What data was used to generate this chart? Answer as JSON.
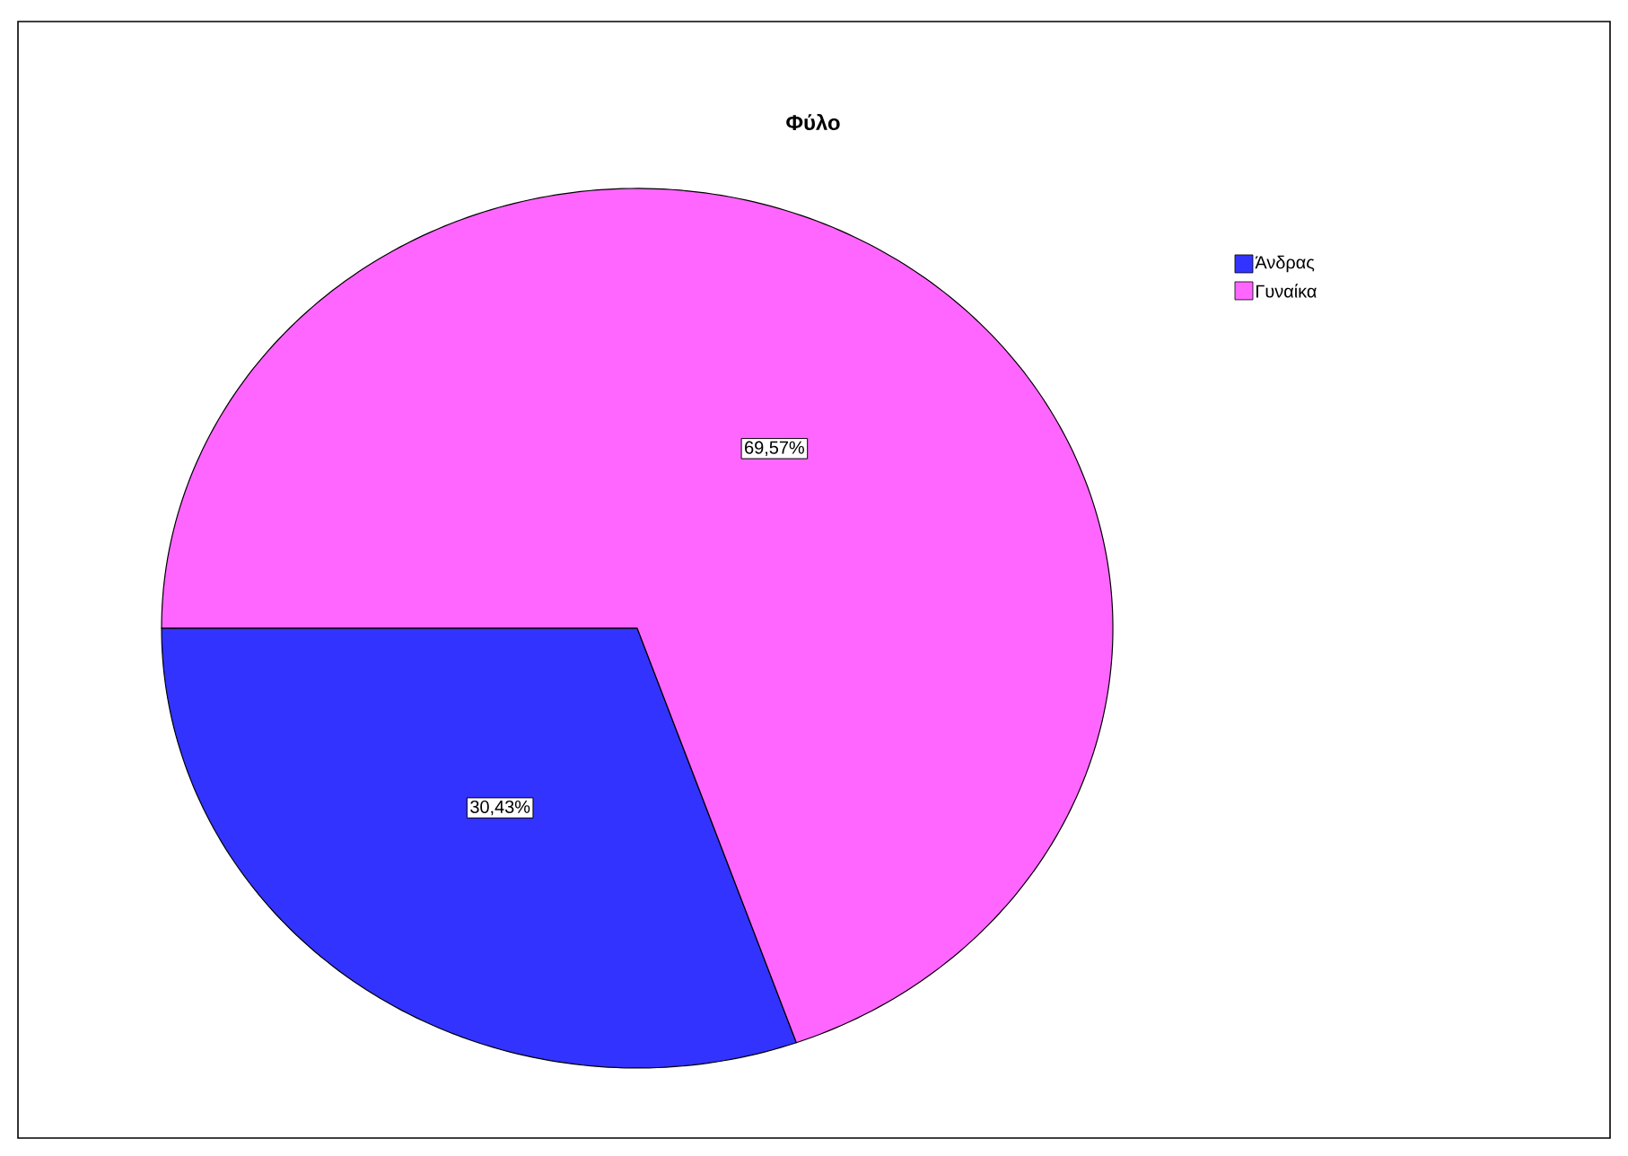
{
  "chart_data": {
    "type": "pie",
    "title": "Φύλο",
    "categories": [
      "Άνδρας",
      "Γυναίκα"
    ],
    "values": [
      30.43,
      69.57
    ],
    "colors": [
      "#3333ff",
      "#ff66ff"
    ],
    "value_labels": [
      "30,43%",
      "69,57%"
    ],
    "legend": "top right"
  }
}
